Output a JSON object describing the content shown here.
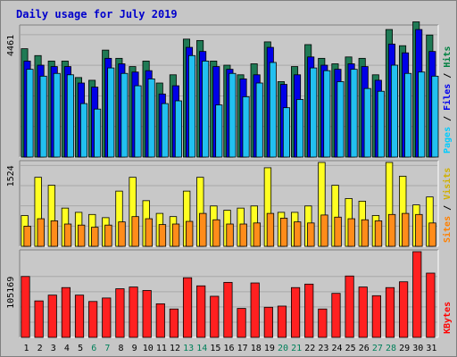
{
  "chart_data": {
    "type": "bar",
    "title": "Daily usage for July 2019",
    "categories": [
      "1",
      "2",
      "3",
      "4",
      "5",
      "6",
      "7",
      "8",
      "9",
      "10",
      "11",
      "12",
      "13",
      "14",
      "15",
      "16",
      "17",
      "18",
      "19",
      "20",
      "21",
      "22",
      "23",
      "24",
      "25",
      "26",
      "27",
      "28",
      "29",
      "30",
      "31"
    ],
    "weekend_days": [
      "6",
      "7",
      "13",
      "14",
      "20",
      "21",
      "27",
      "28"
    ],
    "panels": [
      {
        "id": "hits-files-pages",
        "y_tick_label": "4461",
        "y_tick_value": 4461,
        "ylim": [
          0,
          4750
        ],
        "legend": [
          {
            "text": "Pages",
            "color": "#00ccff"
          },
          {
            "text": " / ",
            "color": "#000000"
          },
          {
            "text": "Files",
            "color": "#0000ee"
          },
          {
            "text": " / ",
            "color": "#000000"
          },
          {
            "text": "Hits",
            "color": "#008040"
          }
        ],
        "series": [
          {
            "name": "Hits",
            "color": "#1f7a55",
            "values": [
              3950,
              3700,
              3500,
              3500,
              2900,
              2800,
              3900,
              3600,
              3300,
              3500,
              2700,
              3000,
              4300,
              4250,
              3500,
              3350,
              3000,
              3400,
              4200,
              2750,
              3300,
              4100,
              3600,
              3400,
              3650,
              3600,
              3000,
              4650,
              4060,
              4930,
              4450
            ]
          },
          {
            "name": "Files",
            "color": "#0000e8",
            "values": [
              3500,
              3350,
              3300,
              3300,
              2700,
              2550,
              3600,
              3400,
              3100,
              3150,
              2300,
              2600,
              4000,
              3850,
              3300,
              3200,
              2850,
              3000,
              4000,
              2650,
              3000,
              3650,
              3350,
              3200,
              3400,
              3300,
              2800,
              4120,
              3800,
              4650,
              3850
            ]
          },
          {
            "name": "Pages",
            "color": "#22c0f0",
            "values": [
              3200,
              2950,
              3050,
              3000,
              1950,
              1750,
              3250,
              3050,
              2600,
              2850,
              1950,
              2050,
              3700,
              3500,
              1900,
              3050,
              2200,
              2700,
              3450,
              1800,
              2100,
              3250,
              3150,
              2750,
              3200,
              2500,
              2400,
              3350,
              3050,
              3100,
              2950
            ]
          }
        ]
      },
      {
        "id": "visits-sites",
        "y_tick_label": "1524",
        "y_tick_value": 1524,
        "ylim": [
          0,
          1580
        ],
        "legend": [
          {
            "text": "Sites",
            "color": "#ff8000"
          },
          {
            "text": " / ",
            "color": "#000000"
          },
          {
            "text": "Visits",
            "color": "#d0b000"
          }
        ],
        "series": [
          {
            "name": "Visits",
            "color": "#ffff22",
            "values": [
              580,
              1300,
              1150,
              720,
              640,
              600,
              540,
              1040,
              1300,
              860,
              620,
              560,
              1040,
              1300,
              760,
              680,
              720,
              760,
              1480,
              640,
              640,
              760,
              1580,
              1150,
              900,
              850,
              580,
              1580,
              1320,
              780,
              930
            ]
          },
          {
            "name": "Sites",
            "color": "#ff8c1a",
            "values": [
              380,
              520,
              480,
              420,
              400,
              360,
              400,
              460,
              560,
              520,
              410,
              420,
              470,
              620,
              500,
              420,
              420,
              440,
              620,
              530,
              460,
              440,
              590,
              550,
              520,
              500,
              480,
              600,
              620,
              600,
              440
            ]
          }
        ]
      },
      {
        "id": "kbytes",
        "y_tick_label": "105169",
        "y_tick_value": 105169,
        "ylim": [
          0,
          148000
        ],
        "legend": [
          {
            "text": "KBytes",
            "color": "#ff0000"
          }
        ],
        "series": [
          {
            "name": "KBytes",
            "color": "#ff2020",
            "values": [
              105169,
              63000,
              73000,
              86000,
              73000,
              62000,
              68000,
              84000,
              87000,
              81000,
              58000,
              49000,
              103000,
              89000,
              71000,
              95000,
              50000,
              94000,
              52000,
              54000,
              86000,
              92000,
              49000,
              76000,
              106000,
              87000,
              72000,
              86000,
              96000,
              148000,
              111000
            ]
          }
        ]
      }
    ]
  }
}
